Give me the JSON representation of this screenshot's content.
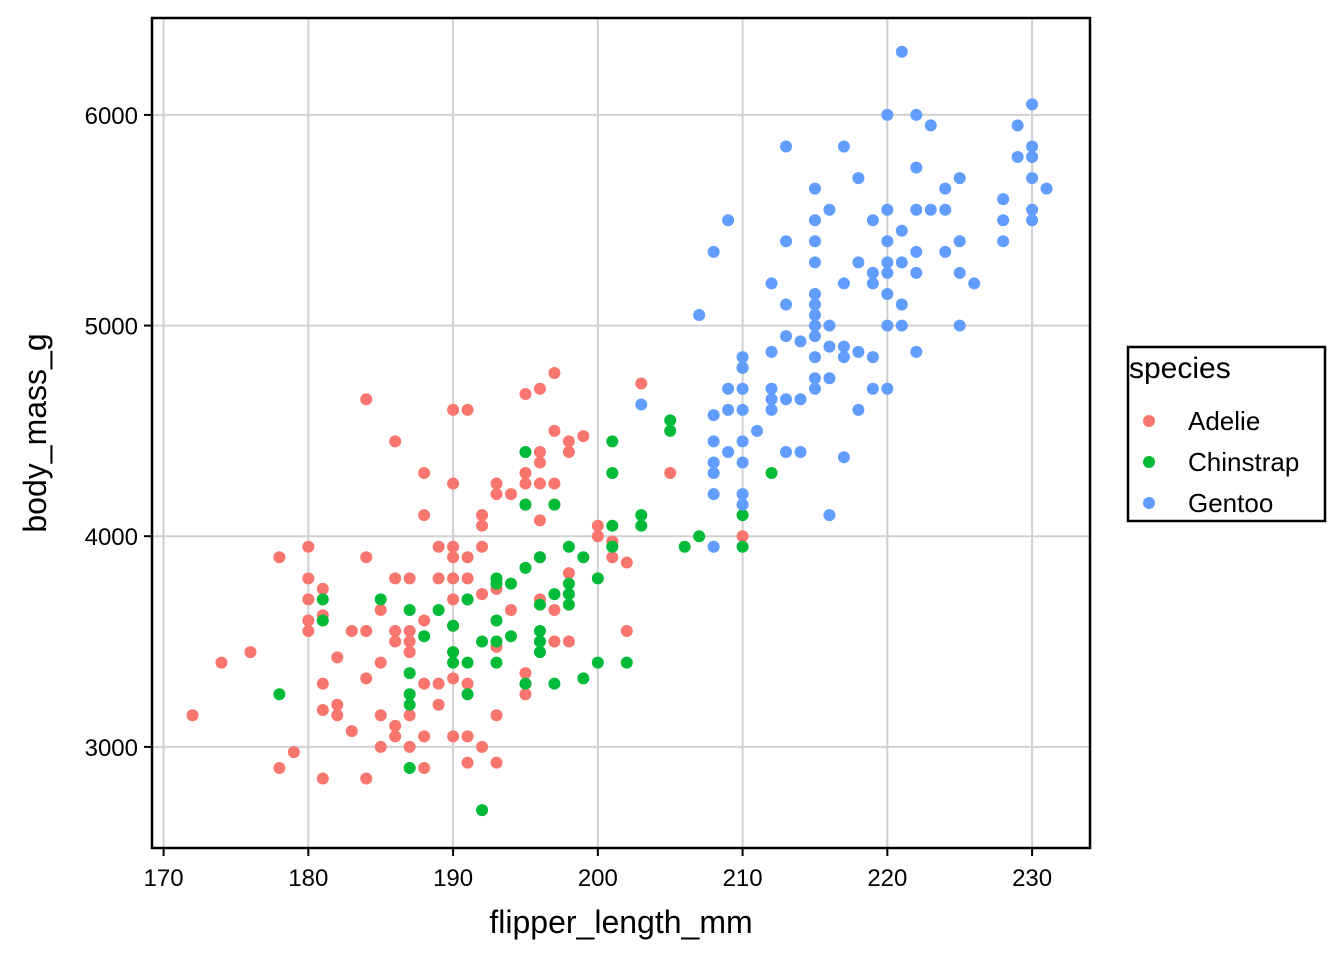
{
  "chart_data": {
    "type": "scatter",
    "xlabel": "flipper_length_mm",
    "ylabel": "body_mass_g",
    "xlim": [
      169.2,
      234
    ],
    "ylim": [
      2520,
      6460
    ],
    "x_ticks": [
      170,
      180,
      190,
      200,
      210,
      220,
      230
    ],
    "y_ticks": [
      3000,
      4000,
      5000,
      6000
    ],
    "grid": true,
    "legend": {
      "title": "species",
      "position": "right"
    },
    "series": [
      {
        "name": "Adelie",
        "color": "#F8766D",
        "points": [
          [
            172,
            3150
          ],
          [
            174,
            3400
          ],
          [
            176,
            3450
          ],
          [
            178,
            3900
          ],
          [
            178,
            2900
          ],
          [
            179,
            2975
          ],
          [
            180,
            3950
          ],
          [
            180,
            3800
          ],
          [
            180,
            3700
          ],
          [
            180,
            3600
          ],
          [
            180,
            3550
          ],
          [
            181,
            3750
          ],
          [
            181,
            3625
          ],
          [
            181,
            3300
          ],
          [
            181,
            3175
          ],
          [
            181,
            2850
          ],
          [
            182,
            3425
          ],
          [
            182,
            3200
          ],
          [
            182,
            3150
          ],
          [
            183,
            3550
          ],
          [
            183,
            3075
          ],
          [
            184,
            4650
          ],
          [
            184,
            3900
          ],
          [
            184,
            3550
          ],
          [
            184,
            3325
          ],
          [
            184,
            2850
          ],
          [
            185,
            3650
          ],
          [
            185,
            3400
          ],
          [
            185,
            3150
          ],
          [
            185,
            3000
          ],
          [
            186,
            4450
          ],
          [
            186,
            3800
          ],
          [
            186,
            3550
          ],
          [
            186,
            3500
          ],
          [
            186,
            3100
          ],
          [
            186,
            3050
          ],
          [
            187,
            3800
          ],
          [
            187,
            3550
          ],
          [
            187,
            3500
          ],
          [
            187,
            3450
          ],
          [
            187,
            3150
          ],
          [
            187,
            3000
          ],
          [
            188,
            4300
          ],
          [
            188,
            4100
          ],
          [
            188,
            3600
          ],
          [
            188,
            3300
          ],
          [
            188,
            3050
          ],
          [
            188,
            2900
          ],
          [
            189,
            3950
          ],
          [
            189,
            3800
          ],
          [
            189,
            3300
          ],
          [
            189,
            3200
          ],
          [
            190,
            4600
          ],
          [
            190,
            4250
          ],
          [
            190,
            3950
          ],
          [
            190,
            3900
          ],
          [
            190,
            3800
          ],
          [
            190,
            3700
          ],
          [
            190,
            3575
          ],
          [
            190,
            3450
          ],
          [
            190,
            3325
          ],
          [
            190,
            3050
          ],
          [
            191,
            4600
          ],
          [
            191,
            3900
          ],
          [
            191,
            3800
          ],
          [
            191,
            3700
          ],
          [
            191,
            3300
          ],
          [
            191,
            3050
          ],
          [
            191,
            2925
          ],
          [
            192,
            4100
          ],
          [
            192,
            4050
          ],
          [
            192,
            3950
          ],
          [
            192,
            3725
          ],
          [
            192,
            3000
          ],
          [
            193,
            4250
          ],
          [
            193,
            4200
          ],
          [
            193,
            3750
          ],
          [
            193,
            3475
          ],
          [
            193,
            3150
          ],
          [
            193,
            2925
          ],
          [
            194,
            4200
          ],
          [
            194,
            3650
          ],
          [
            195,
            4675
          ],
          [
            195,
            4300
          ],
          [
            195,
            4250
          ],
          [
            195,
            4150
          ],
          [
            195,
            3350
          ],
          [
            195,
            3300
          ],
          [
            195,
            3250
          ],
          [
            196,
            4700
          ],
          [
            196,
            4400
          ],
          [
            196,
            4350
          ],
          [
            196,
            4250
          ],
          [
            196,
            4075
          ],
          [
            196,
            3900
          ],
          [
            196,
            3700
          ],
          [
            196,
            3500
          ],
          [
            197,
            4775
          ],
          [
            197,
            4500
          ],
          [
            197,
            4250
          ],
          [
            197,
            4150
          ],
          [
            197,
            3650
          ],
          [
            197,
            3500
          ],
          [
            198,
            4450
          ],
          [
            198,
            4400
          ],
          [
            198,
            3825
          ],
          [
            198,
            3500
          ],
          [
            199,
            4475
          ],
          [
            200,
            4050
          ],
          [
            200,
            4000
          ],
          [
            201,
            3975
          ],
          [
            201,
            3900
          ],
          [
            202,
            3875
          ],
          [
            202,
            3550
          ],
          [
            203,
            4725
          ],
          [
            205,
            4300
          ],
          [
            210,
            4000
          ]
        ]
      },
      {
        "name": "Chinstrap",
        "color": "#00BA38",
        "points": [
          [
            178,
            3250
          ],
          [
            181,
            3700
          ],
          [
            181,
            3600
          ],
          [
            185,
            3700
          ],
          [
            187,
            3650
          ],
          [
            187,
            3350
          ],
          [
            187,
            3250
          ],
          [
            187,
            3200
          ],
          [
            187,
            2900
          ],
          [
            188,
            3525
          ],
          [
            189,
            3650
          ],
          [
            190,
            3575
          ],
          [
            190,
            3450
          ],
          [
            190,
            3400
          ],
          [
            191,
            3700
          ],
          [
            191,
            3400
          ],
          [
            191,
            3250
          ],
          [
            192,
            3500
          ],
          [
            192,
            2700
          ],
          [
            193,
            3800
          ],
          [
            193,
            3775
          ],
          [
            193,
            3600
          ],
          [
            193,
            3500
          ],
          [
            193,
            3400
          ],
          [
            194,
            3775
          ],
          [
            194,
            3525
          ],
          [
            195,
            4400
          ],
          [
            195,
            4150
          ],
          [
            195,
            3850
          ],
          [
            195,
            3300
          ],
          [
            196,
            3900
          ],
          [
            196,
            3675
          ],
          [
            196,
            3550
          ],
          [
            196,
            3500
          ],
          [
            196,
            3450
          ],
          [
            197,
            4150
          ],
          [
            197,
            3725
          ],
          [
            197,
            3300
          ],
          [
            198,
            3950
          ],
          [
            198,
            3775
          ],
          [
            198,
            3725
          ],
          [
            198,
            3675
          ],
          [
            199,
            3900
          ],
          [
            199,
            3325
          ],
          [
            200,
            3800
          ],
          [
            200,
            3400
          ],
          [
            201,
            4450
          ],
          [
            201,
            4300
          ],
          [
            201,
            4050
          ],
          [
            201,
            3950
          ],
          [
            202,
            3400
          ],
          [
            203,
            4100
          ],
          [
            203,
            4050
          ],
          [
            205,
            4550
          ],
          [
            205,
            4500
          ],
          [
            206,
            3950
          ],
          [
            207,
            4000
          ],
          [
            210,
            4800
          ],
          [
            210,
            4100
          ],
          [
            210,
            3950
          ],
          [
            212,
            4300
          ]
        ]
      },
      {
        "name": "Gentoo",
        "color": "#619CFF",
        "points": [
          [
            203,
            4625
          ],
          [
            207,
            5050
          ],
          [
            208,
            5350
          ],
          [
            208,
            4575
          ],
          [
            208,
            4450
          ],
          [
            208,
            4350
          ],
          [
            208,
            4300
          ],
          [
            208,
            4200
          ],
          [
            208,
            3950
          ],
          [
            209,
            5500
          ],
          [
            209,
            4700
          ],
          [
            209,
            4600
          ],
          [
            209,
            4400
          ],
          [
            210,
            4850
          ],
          [
            210,
            4800
          ],
          [
            210,
            4700
          ],
          [
            210,
            4600
          ],
          [
            210,
            4450
          ],
          [
            210,
            4350
          ],
          [
            210,
            4200
          ],
          [
            210,
            4150
          ],
          [
            211,
            4500
          ],
          [
            212,
            5200
          ],
          [
            212,
            4875
          ],
          [
            212,
            4700
          ],
          [
            212,
            4650
          ],
          [
            212,
            4600
          ],
          [
            213,
            5850
          ],
          [
            213,
            5400
          ],
          [
            213,
            5100
          ],
          [
            213,
            4950
          ],
          [
            213,
            4650
          ],
          [
            213,
            4400
          ],
          [
            214,
            4925
          ],
          [
            214,
            4650
          ],
          [
            214,
            4400
          ],
          [
            215,
            5650
          ],
          [
            215,
            5500
          ],
          [
            215,
            5400
          ],
          [
            215,
            5300
          ],
          [
            215,
            5150
          ],
          [
            215,
            5100
          ],
          [
            215,
            5050
          ],
          [
            215,
            5000
          ],
          [
            215,
            4950
          ],
          [
            215,
            4850
          ],
          [
            215,
            4750
          ],
          [
            215,
            4700
          ],
          [
            216,
            5550
          ],
          [
            216,
            5000
          ],
          [
            216,
            4900
          ],
          [
            216,
            4750
          ],
          [
            216,
            4100
          ],
          [
            217,
            5850
          ],
          [
            217,
            5200
          ],
          [
            217,
            4900
          ],
          [
            217,
            4850
          ],
          [
            217,
            4375
          ],
          [
            218,
            5700
          ],
          [
            218,
            5300
          ],
          [
            218,
            4875
          ],
          [
            218,
            4600
          ],
          [
            219,
            5500
          ],
          [
            219,
            5250
          ],
          [
            219,
            5200
          ],
          [
            219,
            4850
          ],
          [
            219,
            4700
          ],
          [
            220,
            6000
          ],
          [
            220,
            5550
          ],
          [
            220,
            5400
          ],
          [
            220,
            5300
          ],
          [
            220,
            5250
          ],
          [
            220,
            5150
          ],
          [
            220,
            5000
          ],
          [
            220,
            4700
          ],
          [
            221,
            6300
          ],
          [
            221,
            5450
          ],
          [
            221,
            5300
          ],
          [
            221,
            5100
          ],
          [
            221,
            5000
          ],
          [
            222,
            6000
          ],
          [
            222,
            5750
          ],
          [
            222,
            5550
          ],
          [
            222,
            5350
          ],
          [
            222,
            5250
          ],
          [
            222,
            4875
          ],
          [
            223,
            5950
          ],
          [
            223,
            5550
          ],
          [
            224,
            5650
          ],
          [
            224,
            5550
          ],
          [
            224,
            5350
          ],
          [
            225,
            5700
          ],
          [
            225,
            5400
          ],
          [
            225,
            5250
          ],
          [
            225,
            5000
          ],
          [
            226,
            5200
          ],
          [
            228,
            5600
          ],
          [
            228,
            5500
          ],
          [
            228,
            5400
          ],
          [
            229,
            5950
          ],
          [
            229,
            5800
          ],
          [
            230,
            6050
          ],
          [
            230,
            5850
          ],
          [
            230,
            5800
          ],
          [
            230,
            5700
          ],
          [
            230,
            5550
          ],
          [
            230,
            5500
          ],
          [
            231,
            5650
          ]
        ]
      }
    ]
  }
}
